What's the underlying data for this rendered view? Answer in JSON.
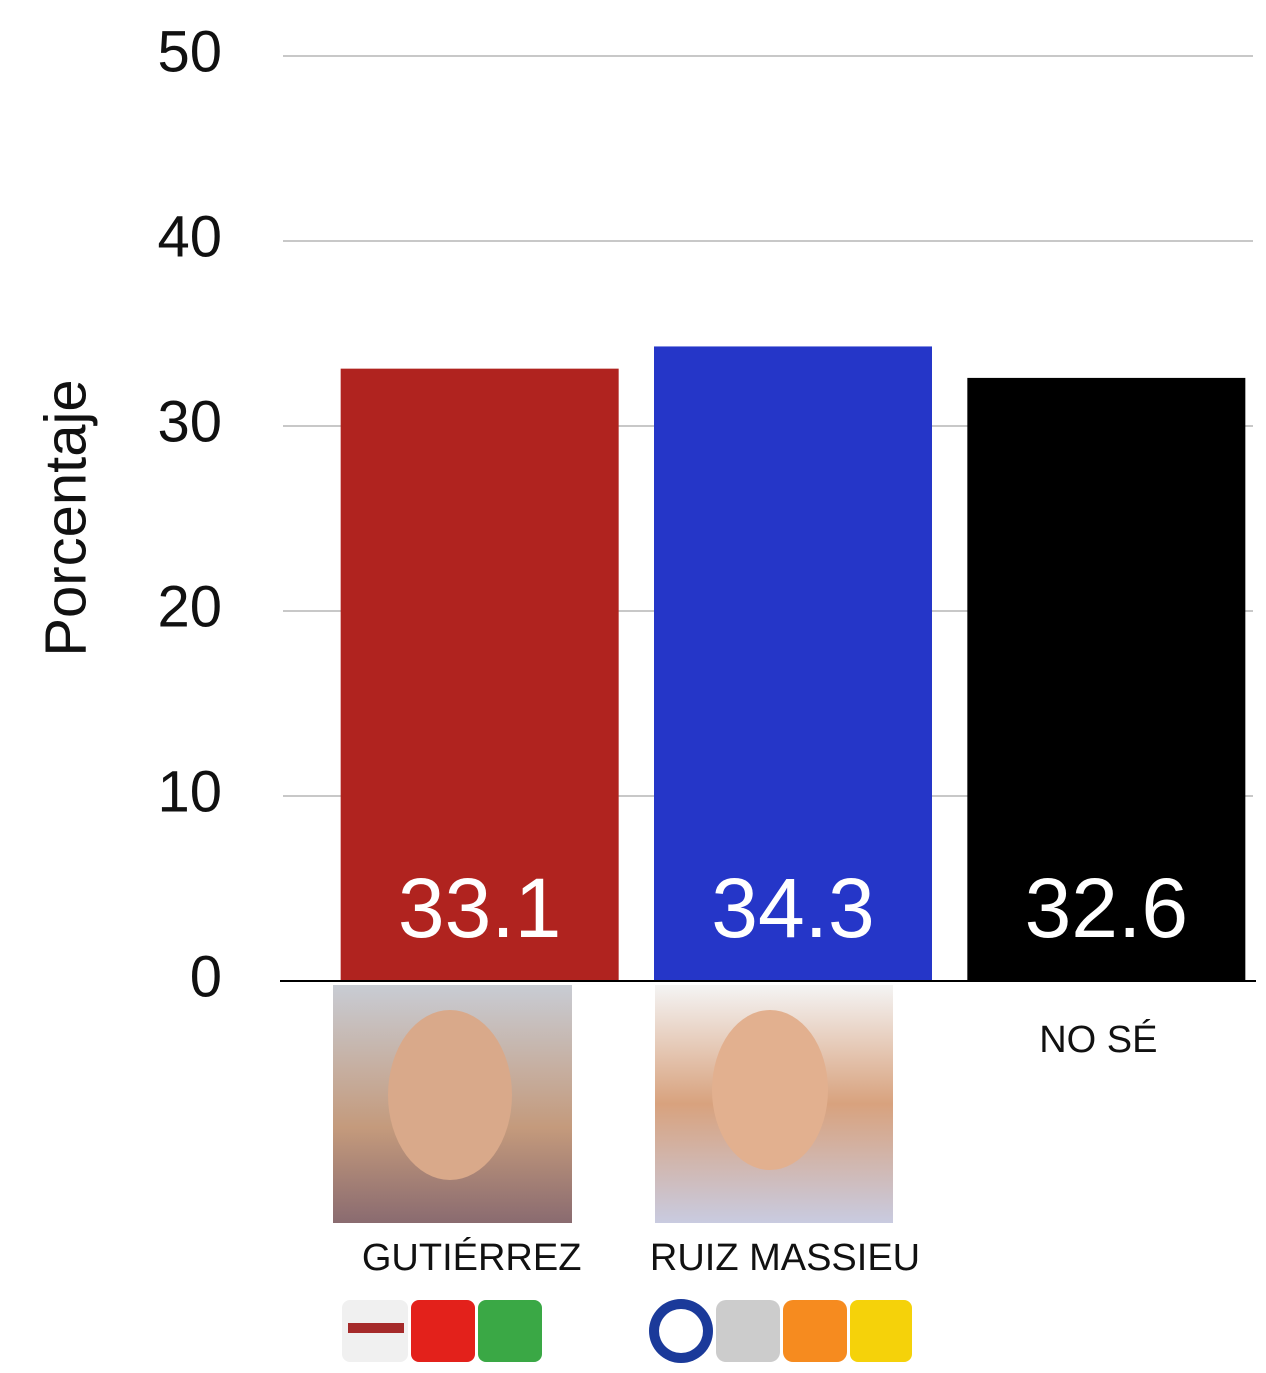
{
  "chart_data": {
    "type": "bar",
    "y_label": "Porcentaje",
    "categories": [
      "GUTIÉRREZ",
      "RUIZ MASSIEU",
      "NO SÉ"
    ],
    "values": [
      33.1,
      34.3,
      32.6
    ],
    "colors": [
      "#b0231f",
      "#2536c8",
      "#000000"
    ],
    "ylim": [
      0,
      50
    ],
    "yticks": [
      0,
      10,
      20,
      30,
      40,
      50
    ],
    "grid": true
  }
}
